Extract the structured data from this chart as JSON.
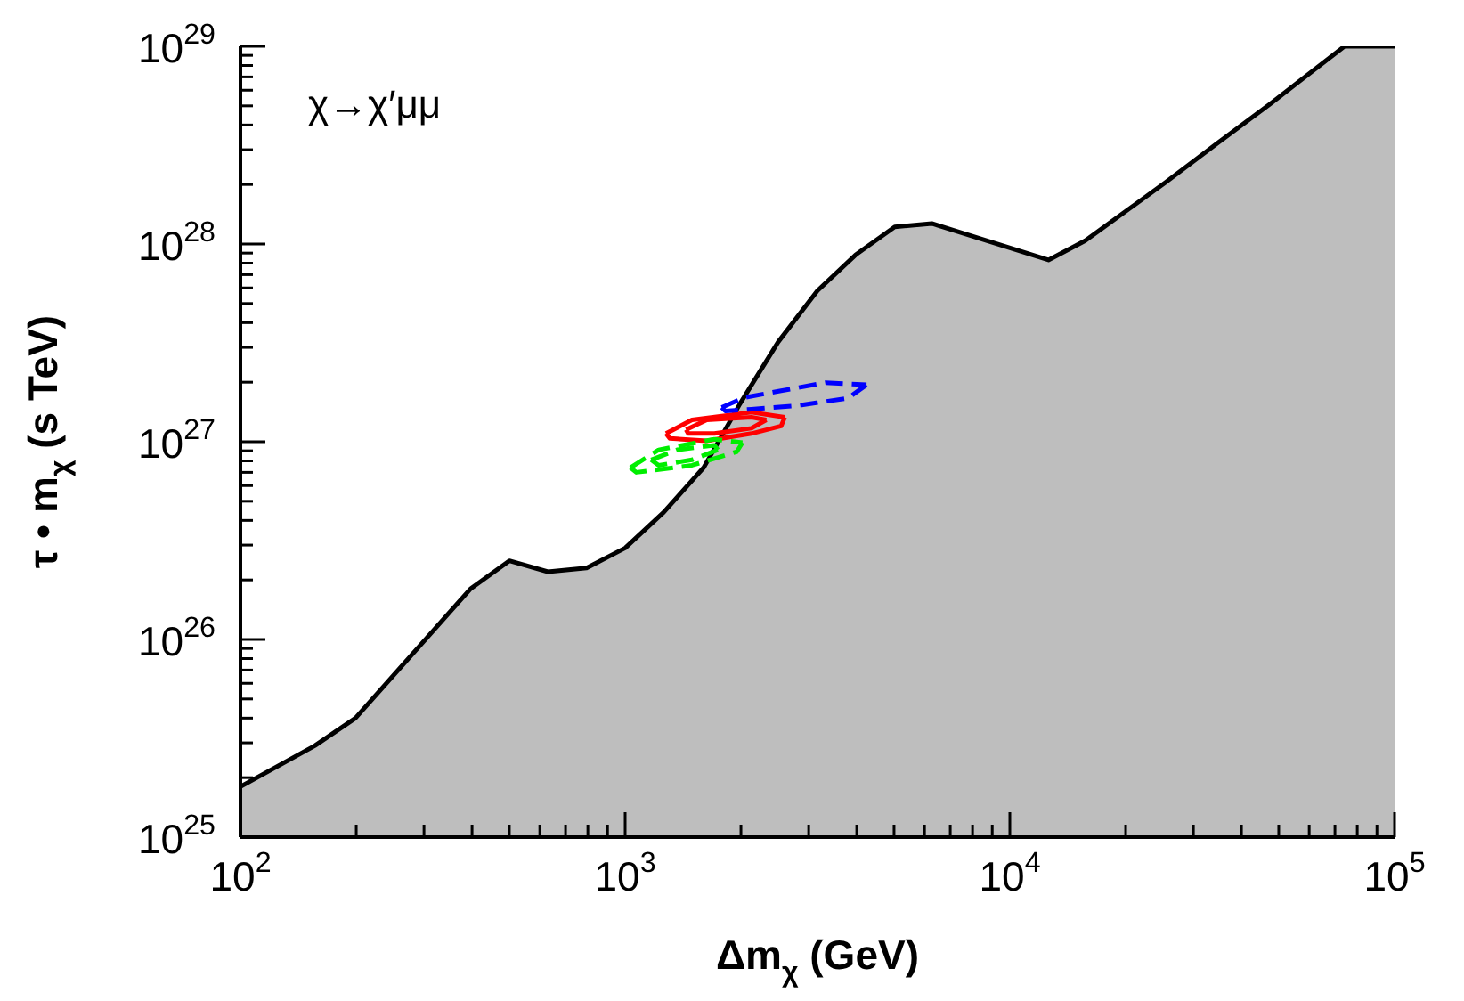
{
  "chart_data": {
    "type": "line",
    "xlabel": "Δm$_{χ}$ (GeV)",
    "ylabel": "τ • m$_{χ}$ (s TeV)",
    "log": "xy",
    "grid": false,
    "marker": "none",
    "annotations": [
      "χ→χ′μμ"
    ],
    "xlim": [
      100,
      100000
    ],
    "ylim": [
      1e+25,
      1e+29
    ],
    "xticks": [
      {
        "value": 100,
        "label": "10$^{2}$"
      },
      {
        "value": 200,
        "label": null
      },
      {
        "value": 300,
        "label": null
      },
      {
        "value": 400,
        "label": null
      },
      {
        "value": 500,
        "label": null
      },
      {
        "value": 600,
        "label": null
      },
      {
        "value": 700,
        "label": null
      },
      {
        "value": 800,
        "label": null
      },
      {
        "value": 900,
        "label": null
      },
      {
        "value": 1000,
        "label": "10$^{3}$"
      },
      {
        "value": 2000,
        "label": null
      },
      {
        "value": 3000,
        "label": null
      },
      {
        "value": 4000,
        "label": null
      },
      {
        "value": 5000,
        "label": null
      },
      {
        "value": 6000,
        "label": null
      },
      {
        "value": 7000,
        "label": null
      },
      {
        "value": 8000,
        "label": null
      },
      {
        "value": 9000,
        "label": null
      },
      {
        "value": 10000,
        "label": "10$^{4}$"
      },
      {
        "value": 20000,
        "label": null
      },
      {
        "value": 30000,
        "label": null
      },
      {
        "value": 40000,
        "label": null
      },
      {
        "value": 50000,
        "label": null
      },
      {
        "value": 60000,
        "label": null
      },
      {
        "value": 70000,
        "label": null
      },
      {
        "value": 80000,
        "label": null
      },
      {
        "value": 90000,
        "label": null
      },
      {
        "value": 100000,
        "label": "10$^{5}$"
      }
    ],
    "yticks": [
      {
        "value": 1e+25,
        "label": "10$^{25}$"
      },
      {
        "value": 2e+25,
        "label": null
      },
      {
        "value": 3e+25,
        "label": null
      },
      {
        "value": 4e+25,
        "label": null
      },
      {
        "value": 5e+25,
        "label": null
      },
      {
        "value": 6e+25,
        "label": null
      },
      {
        "value": 7e+25,
        "label": null
      },
      {
        "value": 8e+25,
        "label": null
      },
      {
        "value": 9e+25,
        "label": null
      },
      {
        "value": 1e+26,
        "label": "10$^{26}$"
      },
      {
        "value": 2e+26,
        "label": null
      },
      {
        "value": 3e+26,
        "label": null
      },
      {
        "value": 4e+26,
        "label": null
      },
      {
        "value": 5e+26,
        "label": null
      },
      {
        "value": 6e+26,
        "label": null
      },
      {
        "value": 7e+26,
        "label": null
      },
      {
        "value": 8e+26,
        "label": null
      },
      {
        "value": 9e+26,
        "label": null
      },
      {
        "value": 1e+27,
        "label": "10$^{27}$"
      },
      {
        "value": 2e+27,
        "label": null
      },
      {
        "value": 3e+27,
        "label": null
      },
      {
        "value": 4e+27,
        "label": null
      },
      {
        "value": 5e+27,
        "label": null
      },
      {
        "value": 6e+27,
        "label": null
      },
      {
        "value": 7e+27,
        "label": null
      },
      {
        "value": 8e+27,
        "label": null
      },
      {
        "value": 9e+27,
        "label": null
      },
      {
        "value": 1e+28,
        "label": "10$^{28}$"
      },
      {
        "value": 2e+28,
        "label": null
      },
      {
        "value": 3e+28,
        "label": null
      },
      {
        "value": 4e+28,
        "label": null
      },
      {
        "value": 5e+28,
        "label": null
      },
      {
        "value": 6e+28,
        "label": null
      },
      {
        "value": 7e+28,
        "label": null
      },
      {
        "value": 8e+28,
        "label": null
      },
      {
        "value": 9e+28,
        "label": null
      },
      {
        "value": 1e+29,
        "label": "10$^{29}$"
      }
    ],
    "series": [
      {
        "type": "area",
        "color": "#bebebe",
        "x": [
          100,
          156,
          199,
          396,
          500,
          630,
          794,
          1000,
          1260,
          1600,
          1990,
          2500,
          3160,
          3970,
          5020,
          6270,
          12600,
          15700,
          25400,
          34400,
          47400,
          74100,
          100000
        ],
        "values": [
          1.8e+25,
          2.9e+25,
          4e+25,
          1.8e+26,
          2.5e+26,
          2.2e+26,
          2.3e+26,
          2.9e+26,
          4.4e+26,
          7.4e+26,
          1.56e+27,
          3.2e+27,
          5.8e+27,
          8.8e+27,
          1.22e+28,
          1.27e+28,
          8.3e+27,
          1.04e+28,
          2.05e+28,
          3.2e+28,
          5.1e+28,
          1e+29,
          1e+29
        ]
      },
      {
        "color": "#ff0000",
        "line_style": "solid",
        "x": [
          1277,
          1492,
          2130,
          2600
        ],
        "values": [
          1.1e+27,
          1.29e+27,
          1.41e+27,
          1.33e+27
        ]
      },
      {
        "color": "#ff0000",
        "line_style": "solid",
        "x": [
          1277,
          1306,
          1630,
          2130,
          2543,
          2600
        ],
        "values": [
          1.1e+27,
          1.04e+27,
          1.01e+27,
          1.1e+27,
          1.2e+27,
          1.33e+27
        ]
      },
      {
        "color": "#ff0000",
        "line_style": "solid",
        "x": [
          1440,
          1630,
          2130,
          2328
        ],
        "values": [
          1.15e+27,
          1.29e+27,
          1.33e+27,
          1.29e+27
        ]
      },
      {
        "color": "#ff0000",
        "line_style": "solid",
        "x": [
          1440,
          1459,
          1706,
          2130,
          2328
        ],
        "values": [
          1.15e+27,
          1.1e+27,
          1.1e+27,
          1.17e+27,
          1.29e+27
        ]
      },
      {
        "color": "#00ee00",
        "line_style": "dashed",
        "x": [
          1032,
          1222,
          1706,
          2018
        ],
        "values": [
          7.4e+26,
          9.1e+26,
          1.03e+27,
          9.9e+26
        ]
      },
      {
        "color": "#00ee00",
        "line_style": "dashed",
        "x": [
          1032,
          1069,
          1492,
          1950,
          2018
        ],
        "values": [
          7.4e+26,
          7e+26,
          7.6e+26,
          8.9e+26,
          9.9e+26
        ]
      },
      {
        "color": "#00ee00",
        "line_style": "dashed",
        "x": [
          1169,
          1365,
          1706,
          1742
        ],
        "values": [
          8.1e+26,
          9.1e+26,
          9.6e+26,
          9.1e+26
        ]
      },
      {
        "color": "#00ee00",
        "line_style": "dashed",
        "x": [
          1169,
          1222,
          1492,
          1742
        ],
        "values": [
          8.1e+26,
          7.6e+26,
          8.1e+26,
          9.1e+26
        ]
      },
      {
        "color": "#0000ff",
        "line_style": "dashed",
        "x": [
          1782,
          2037,
          2543,
          3320,
          4240
        ],
        "values": [
          1.49e+27,
          1.67e+27,
          1.81e+27,
          1.99e+27,
          1.94e+27
        ]
      },
      {
        "color": "#0000ff",
        "line_style": "dashed",
        "x": [
          1782,
          1822,
          2130,
          2780,
          3795,
          4240
        ],
        "values": [
          1.49e+27,
          1.43e+27,
          1.46e+27,
          1.52e+27,
          1.66e+27,
          1.94e+27
        ]
      }
    ]
  }
}
